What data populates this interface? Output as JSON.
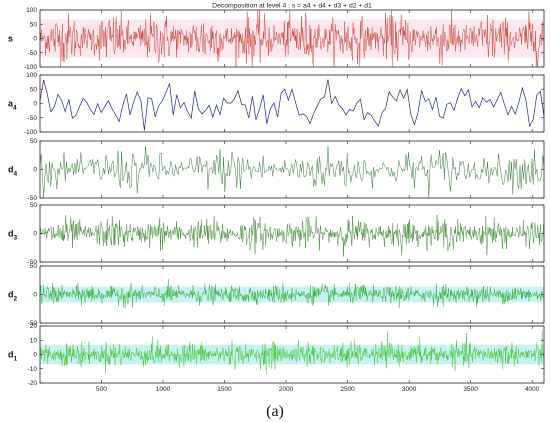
{
  "chart_data": {
    "type": "line",
    "title": "Decomposition at level 4 : s = a4 + d4 + d3 + d2 + d1",
    "caption": "(a)",
    "x_range": [
      1,
      4096
    ],
    "x_ticks": [
      500,
      1000,
      1500,
      2000,
      2500,
      3000,
      3500,
      4000
    ],
    "panels": [
      {
        "label": "s",
        "sub": "",
        "ylim": [
          -100,
          100
        ],
        "yticks": [
          100,
          50,
          0,
          -50,
          -100
        ],
        "color": "#c0392b",
        "shade": "#ffe6ef",
        "amplitude": 58,
        "roughness": "high"
      },
      {
        "label": "a",
        "sub": "4",
        "ylim": [
          -100,
          100
        ],
        "yticks": [
          100,
          50,
          0,
          -50,
          -100
        ],
        "color": "#1f2a8a",
        "shade": "",
        "amplitude": 45,
        "roughness": "smooth"
      },
      {
        "label": "d",
        "sub": "4",
        "ylim": [
          -50,
          50
        ],
        "yticks": [
          50,
          0,
          -50
        ],
        "color": "#1f6b1f",
        "shade": "",
        "amplitude": 25,
        "roughness": "medium"
      },
      {
        "label": "d",
        "sub": "3",
        "ylim": [
          -50,
          50
        ],
        "yticks": [
          50,
          0,
          -50
        ],
        "color": "#2f7d22",
        "shade": "",
        "amplitude": 18,
        "roughness": "high"
      },
      {
        "label": "d",
        "sub": "2",
        "ylim": [
          -50,
          50
        ],
        "yticks": [
          50,
          0,
          -50
        ],
        "color": "#2ea82e",
        "shade": "#c8f2f2",
        "amplitude": 12,
        "roughness": "very-high"
      },
      {
        "label": "d",
        "sub": "1",
        "ylim": [
          -20,
          20
        ],
        "yticks": [
          20,
          10,
          0,
          -10,
          -20
        ],
        "color": "#3cbf2a",
        "shade": "#c8f2f2",
        "amplitude": 6,
        "roughness": "very-high"
      }
    ]
  }
}
